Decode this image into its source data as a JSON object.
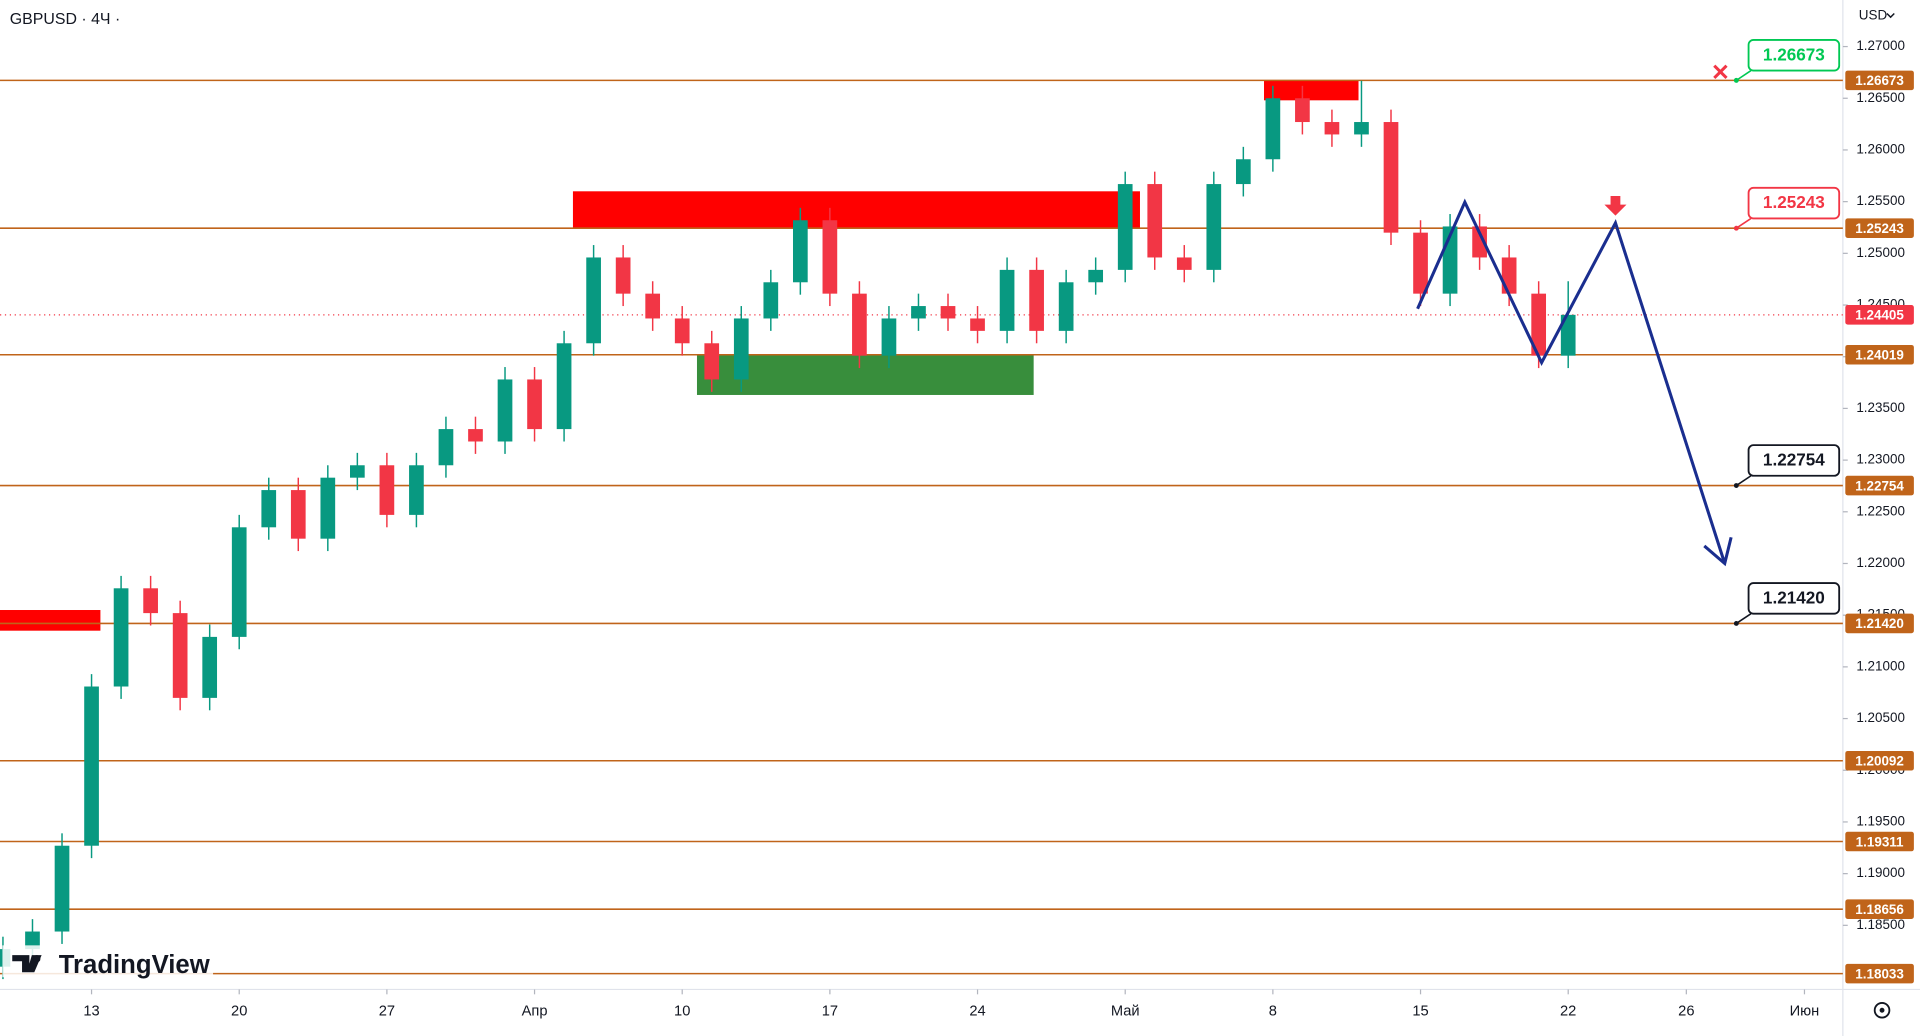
{
  "header": {
    "symbol": "GBPUSD · 4Ч ·",
    "currency": "USD",
    "logo": "TradingView"
  },
  "chart_data": {
    "type": "candlestick",
    "up_color": "#089981",
    "down_color": "#f23645",
    "xlim": [
      -3.1,
      59.3
    ],
    "ylim": [
      1.1788,
      1.2745
    ],
    "xticks": [
      {
        "value": 0,
        "label": "13"
      },
      {
        "value": 5,
        "label": "20"
      },
      {
        "value": 10,
        "label": "27"
      },
      {
        "value": 15,
        "label": "Апр"
      },
      {
        "value": 20,
        "label": "10"
      },
      {
        "value": 25,
        "label": "17"
      },
      {
        "value": 30,
        "label": "24"
      },
      {
        "value": 35,
        "label": "Май"
      },
      {
        "value": 40,
        "label": "8"
      },
      {
        "value": 45,
        "label": "15"
      },
      {
        "value": 50,
        "label": "22"
      },
      {
        "value": 54,
        "label": "26"
      },
      {
        "value": 58,
        "label": "Июн"
      }
    ],
    "yticks": [
      {
        "value": 1.27,
        "label": "1.27000"
      },
      {
        "value": 1.265,
        "label": "1.26500"
      },
      {
        "value": 1.26,
        "label": "1.26000"
      },
      {
        "value": 1.255,
        "label": "1.25500"
      },
      {
        "value": 1.25,
        "label": "1.25000"
      },
      {
        "value": 1.245,
        "label": "1.24500"
      },
      {
        "value": 1.24,
        "label": "1.24000"
      },
      {
        "value": 1.235,
        "label": "1.23500"
      },
      {
        "value": 1.23,
        "label": "1.23000"
      },
      {
        "value": 1.225,
        "label": "1.22500"
      },
      {
        "value": 1.22,
        "label": "1.22000"
      },
      {
        "value": 1.215,
        "label": "1.21500"
      },
      {
        "value": 1.21,
        "label": "1.21000"
      },
      {
        "value": 1.205,
        "label": "1.20500"
      },
      {
        "value": 1.2,
        "label": "1.20000"
      },
      {
        "value": 1.195,
        "label": "1.19500"
      },
      {
        "value": 1.19,
        "label": "1.19000"
      },
      {
        "value": 1.185,
        "label": "1.18500"
      }
    ],
    "x": [
      -3,
      -2,
      -1,
      0,
      1,
      2,
      3,
      4,
      5,
      6,
      7,
      8,
      9,
      10,
      11,
      12,
      13,
      14,
      15,
      16,
      17,
      18,
      19,
      20,
      21,
      22,
      23,
      24,
      25,
      26,
      27,
      28,
      29,
      30,
      31,
      32,
      33,
      34,
      35,
      36,
      37,
      38,
      39,
      40,
      41,
      42,
      43,
      44,
      45,
      46,
      47,
      48,
      49,
      50
    ],
    "open": [
      1.181,
      1.1827,
      1.1844,
      1.1927,
      1.2081,
      1.2176,
      1.2152,
      1.207,
      1.2129,
      1.2235,
      1.2271,
      1.2224,
      1.2283,
      1.2295,
      1.2247,
      1.2295,
      1.233,
      1.2318,
      1.2378,
      1.233,
      1.2413,
      1.2496,
      1.2461,
      1.2437,
      1.2413,
      1.2378,
      1.2437,
      1.2472,
      1.2532,
      1.2461,
      1.2401,
      1.2437,
      1.2449,
      1.2437,
      1.2425,
      1.2484,
      1.2425,
      1.2472,
      1.2484,
      1.2567,
      1.2496,
      1.2484,
      1.2567,
      1.2591,
      1.265,
      1.2627,
      1.2615,
      1.2627,
      1.252,
      1.2461,
      1.2526,
      1.2496,
      1.2461,
      1.2401
    ],
    "high": [
      1.1839,
      1.1856,
      1.1939,
      1.2093,
      1.2188,
      1.2188,
      1.2164,
      1.2141,
      1.2247,
      1.2283,
      1.2283,
      1.2295,
      1.2307,
      1.2307,
      1.2307,
      1.2342,
      1.2342,
      1.239,
      1.239,
      1.2425,
      1.2508,
      1.2508,
      1.2473,
      1.2449,
      1.2425,
      1.2449,
      1.2484,
      1.2544,
      1.2544,
      1.2473,
      1.2449,
      1.2461,
      1.2461,
      1.2449,
      1.2496,
      1.2496,
      1.2484,
      1.2496,
      1.2579,
      1.2579,
      1.2508,
      1.2579,
      1.2603,
      1.2662,
      1.2662,
      1.2639,
      1.2667,
      1.2639,
      1.2532,
      1.2538,
      1.2538,
      1.2508,
      1.2473,
      1.2473
    ],
    "low": [
      1.1798,
      1.1815,
      1.1832,
      1.1915,
      1.2069,
      1.214,
      1.2058,
      1.2058,
      1.2117,
      1.2223,
      1.2212,
      1.2212,
      1.2271,
      1.2235,
      1.2235,
      1.2283,
      1.2306,
      1.2306,
      1.2318,
      1.2318,
      1.2401,
      1.2449,
      1.2425,
      1.2401,
      1.2366,
      1.2366,
      1.2425,
      1.246,
      1.2449,
      1.2389,
      1.2389,
      1.2425,
      1.2425,
      1.2413,
      1.2413,
      1.2413,
      1.2413,
      1.246,
      1.2472,
      1.2484,
      1.2472,
      1.2472,
      1.2555,
      1.2579,
      1.2615,
      1.2603,
      1.2603,
      1.2508,
      1.2449,
      1.2449,
      1.2484,
      1.2449,
      1.2389,
      1.2389
    ],
    "close": [
      1.1827,
      1.1844,
      1.1927,
      1.2081,
      1.2176,
      1.2152,
      1.207,
      1.2129,
      1.2235,
      1.2271,
      1.2224,
      1.2283,
      1.2295,
      1.2247,
      1.2295,
      1.233,
      1.2318,
      1.2378,
      1.233,
      1.2413,
      1.2496,
      1.2461,
      1.2437,
      1.2413,
      1.2378,
      1.2437,
      1.2472,
      1.2532,
      1.2461,
      1.2401,
      1.2437,
      1.2449,
      1.2437,
      1.2425,
      1.2484,
      1.2425,
      1.2472,
      1.2484,
      1.2567,
      1.2496,
      1.2484,
      1.2567,
      1.2591,
      1.265,
      1.2627,
      1.2615,
      1.2627,
      1.252,
      1.2461,
      1.2526,
      1.2496,
      1.2461,
      1.2401,
      1.24405
    ],
    "zones": [
      {
        "x": [
          16.3,
          35.5
        ],
        "y": [
          1.2524,
          1.256
        ],
        "color": "#ff0000"
      },
      {
        "x": [
          39.7,
          42.9
        ],
        "y": [
          1.2648,
          1.2667
        ],
        "color": "#ff0000"
      },
      {
        "x": [
          -3.1,
          0.3
        ],
        "y": [
          1.2135,
          1.2155
        ],
        "color": "#ff0000"
      },
      {
        "x": [
          20.5,
          31.9
        ],
        "y": [
          1.2363,
          1.2402
        ],
        "color": "#388e3c"
      }
    ],
    "level_color": "#c0641a",
    "levels": [
      {
        "value": 1.26673,
        "label": "1.26673",
        "callout": "#00c853"
      },
      {
        "value": 1.25243,
        "label": "1.25243",
        "callout": "#f23645"
      },
      {
        "value": 1.24019,
        "label": "1.24019"
      },
      {
        "value": 1.22754,
        "label": "1.22754",
        "callout": "#131722"
      },
      {
        "value": 1.2142,
        "label": "1.21420",
        "callout": "#131722"
      },
      {
        "value": 1.20092,
        "label": "1.20092"
      },
      {
        "value": 1.19311,
        "label": "1.19311"
      },
      {
        "value": 1.18656,
        "label": "1.18656"
      },
      {
        "value": 1.18033,
        "label": "1.18033"
      }
    ],
    "last_price": {
      "value": 1.24405,
      "label": "1.24405",
      "color": "#f23645"
    },
    "projection": {
      "x": [
        44.9,
        46.5,
        49.1,
        51.6,
        55.3
      ],
      "y": [
        1.24464,
        1.25495,
        1.23943,
        1.25294,
        1.22
      ],
      "color": "#1a2e8f"
    }
  }
}
